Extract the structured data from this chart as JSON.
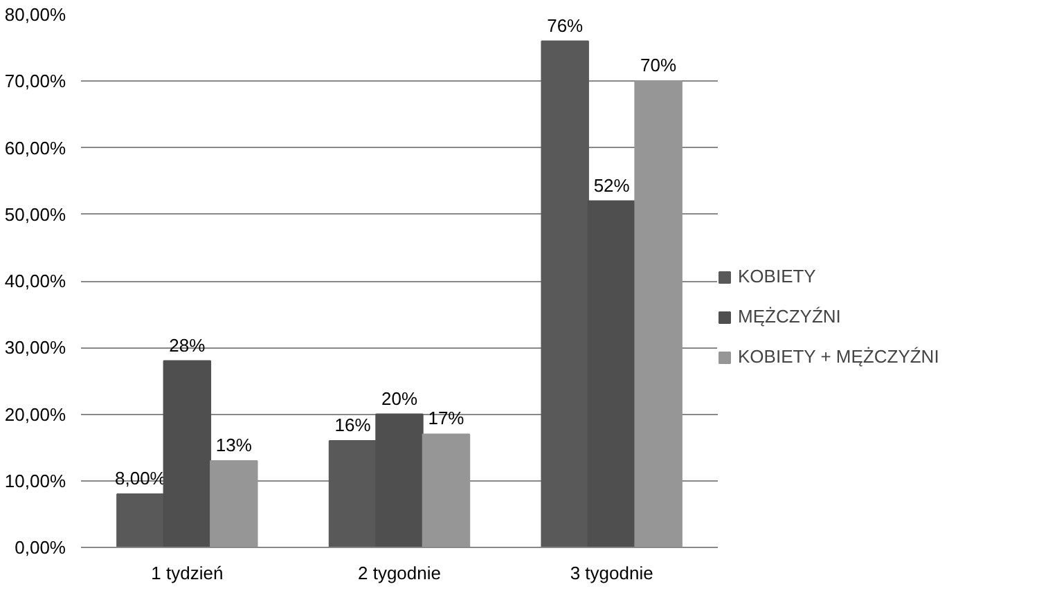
{
  "chart_data": {
    "type": "bar",
    "categories": [
      "1 tydzień",
      "2 tygodnie",
      "3 tygodnie"
    ],
    "series": [
      {
        "name": "KOBIETY",
        "color": "#595959",
        "values": [
          8,
          16,
          76
        ],
        "value_labels": [
          "8,00%",
          "16%",
          "76%"
        ]
      },
      {
        "name": "MĘŻCZYŹNI",
        "color": "#4f4f4f",
        "values": [
          28,
          20,
          52
        ],
        "value_labels": [
          "28%",
          "20%",
          "52%"
        ]
      },
      {
        "name": "KOBIETY + MĘŻCZYŹNI",
        "color": "#969696",
        "values": [
          13,
          17,
          70
        ],
        "value_labels": [
          "13%",
          "17%",
          "70%"
        ]
      }
    ],
    "ylim": [
      0,
      80
    ],
    "yticks": [
      {
        "value": 0,
        "label": "0,00%"
      },
      {
        "value": 10,
        "label": "10,00%"
      },
      {
        "value": 20,
        "label": "20,00%"
      },
      {
        "value": 30,
        "label": "30,00%"
      },
      {
        "value": 40,
        "label": "40,00%"
      },
      {
        "value": 50,
        "label": "50,00%"
      },
      {
        "value": 60,
        "label": "60,00%"
      },
      {
        "value": 70,
        "label": "70,00%"
      },
      {
        "value": 80,
        "label": "80,00%"
      }
    ],
    "grid": "y",
    "legend": "right"
  }
}
